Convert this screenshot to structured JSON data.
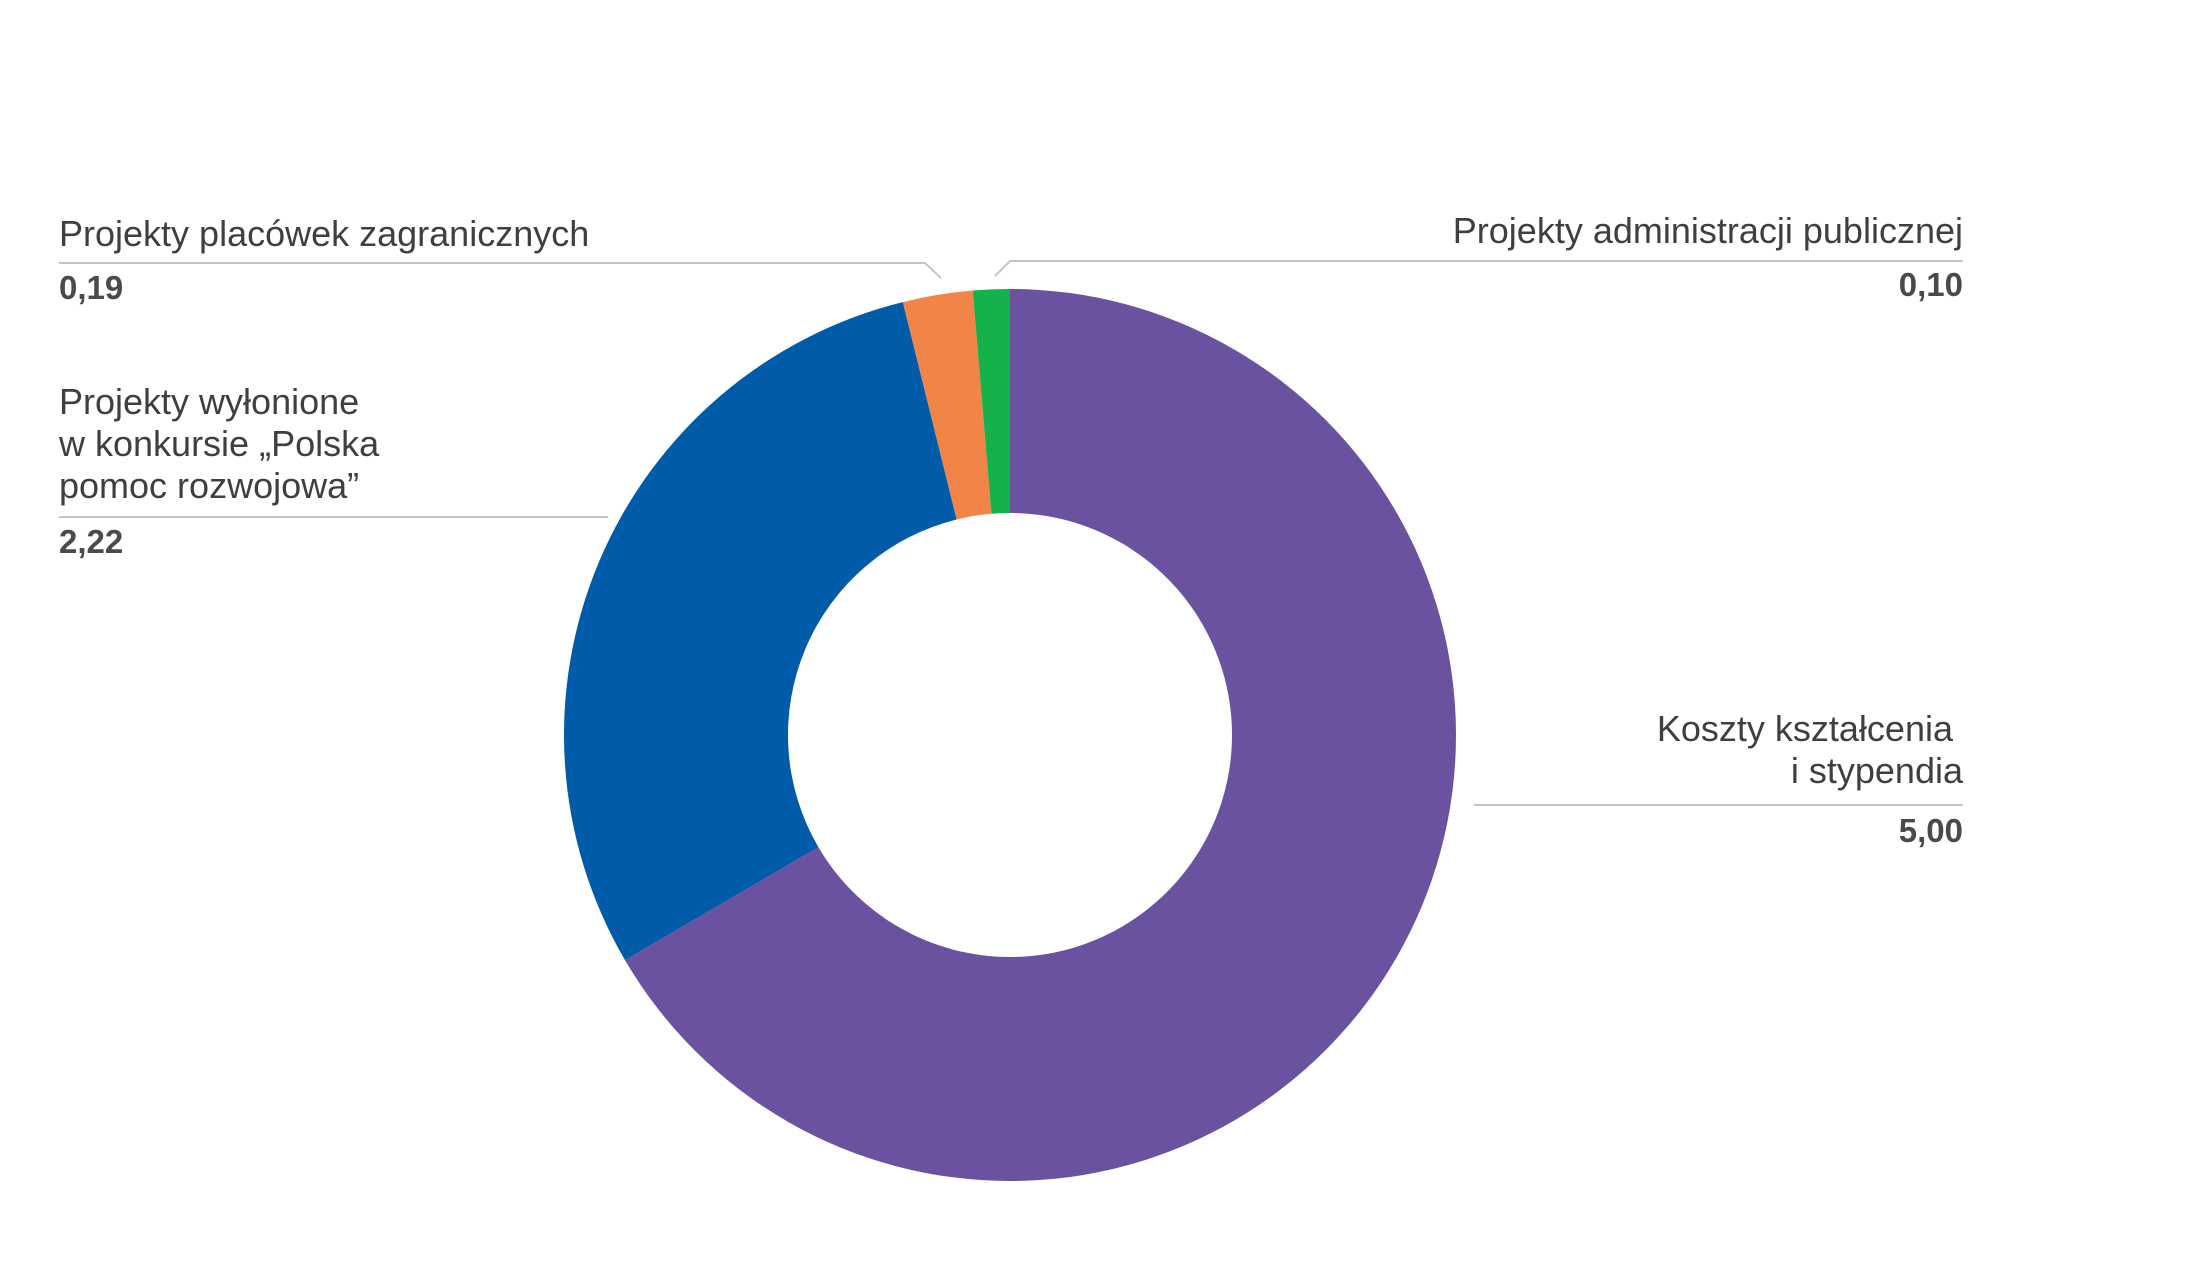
{
  "chart_data": {
    "type": "pie",
    "title": "",
    "series": [
      {
        "name": "",
        "values": [
          5.0,
          2.22,
          0.19,
          0.1
        ]
      }
    ],
    "slices": [
      {
        "label": [
          "Koszty kształcenia",
          "i stypendia"
        ],
        "value": 5.0,
        "value_label": "5,00",
        "color": "#6a52a1",
        "label_side": "right"
      },
      {
        "label": [
          "Projekty wyłonione",
          "w konkursie „Polska",
          "pomoc rozwojowa”"
        ],
        "value": 2.22,
        "value_label": "2,22",
        "color": "#005ba9",
        "label_side": "left"
      },
      {
        "label": [
          "Projekty placówek zagranicznych"
        ],
        "value": 0.19,
        "value_label": "0,19",
        "color": "#f18548",
        "label_side": "left"
      },
      {
        "label": [
          "Projekty administracji publicznej"
        ],
        "value": 0.1,
        "value_label": "0,10",
        "color": "#15b14a",
        "label_side": "right"
      }
    ],
    "legend": "none",
    "donut": true,
    "start_angle": "12 o'clock",
    "direction": "clockwise"
  }
}
